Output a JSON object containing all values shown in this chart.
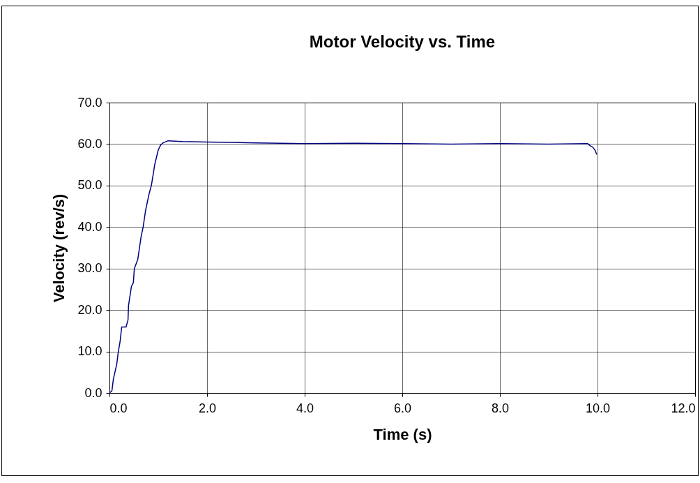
{
  "chart_data": {
    "type": "line",
    "title": "Motor Velocity vs. Time",
    "xlabel": "Time  (s)",
    "ylabel": "Velocity (rev/s)",
    "xlim": [
      0,
      12
    ],
    "ylim": [
      0,
      70
    ],
    "xticks": [
      {
        "value": 0,
        "label": "0.0"
      },
      {
        "value": 2,
        "label": "2.0"
      },
      {
        "value": 4,
        "label": "4.0"
      },
      {
        "value": 6,
        "label": "6.0"
      },
      {
        "value": 8,
        "label": "8.0"
      },
      {
        "value": 10,
        "label": "10.0"
      },
      {
        "value": 12,
        "label": "12.0"
      }
    ],
    "yticks": [
      {
        "value": 0,
        "label": "0.0"
      },
      {
        "value": 10,
        "label": "10.0"
      },
      {
        "value": 20,
        "label": "20.0"
      },
      {
        "value": 30,
        "label": "30.0"
      },
      {
        "value": 40,
        "label": "40.0"
      },
      {
        "value": 50,
        "label": "50.0"
      },
      {
        "value": 60,
        "label": "60.0"
      },
      {
        "value": 70,
        "label": "70.0"
      }
    ],
    "grid": true,
    "marker": "none",
    "line_style": "solid",
    "series": [
      {
        "color": "#000080",
        "x": [
          0,
          0.05,
          0.08,
          0.15,
          0.18,
          0.22,
          0.25,
          0.34,
          0.38,
          0.39,
          0.45,
          0.49,
          0.51,
          0.58,
          0.65,
          0.69,
          0.74,
          0.81,
          0.86,
          0.93,
          1.0,
          1.05,
          1.1,
          1.2,
          1.5,
          2.0,
          2.5,
          3.0,
          4.0,
          5.0,
          6.0,
          7.0,
          8.0,
          9.0,
          9.8,
          9.85,
          9.9,
          9.95,
          9.98
        ],
        "values": [
          0,
          0.5,
          3.3,
          7,
          9.8,
          12.6,
          15.9,
          15.9,
          17.6,
          21,
          25.7,
          26.6,
          30,
          32.2,
          37.8,
          40,
          44,
          47.9,
          50.1,
          55.2,
          58.6,
          59.8,
          60.3,
          60.8,
          60.6,
          60.5,
          60.4,
          60.3,
          60.1,
          60.2,
          60.1,
          60.0,
          60.1,
          60.0,
          60.1,
          59.6,
          59.3,
          58.5,
          57.6
        ]
      }
    ]
  }
}
